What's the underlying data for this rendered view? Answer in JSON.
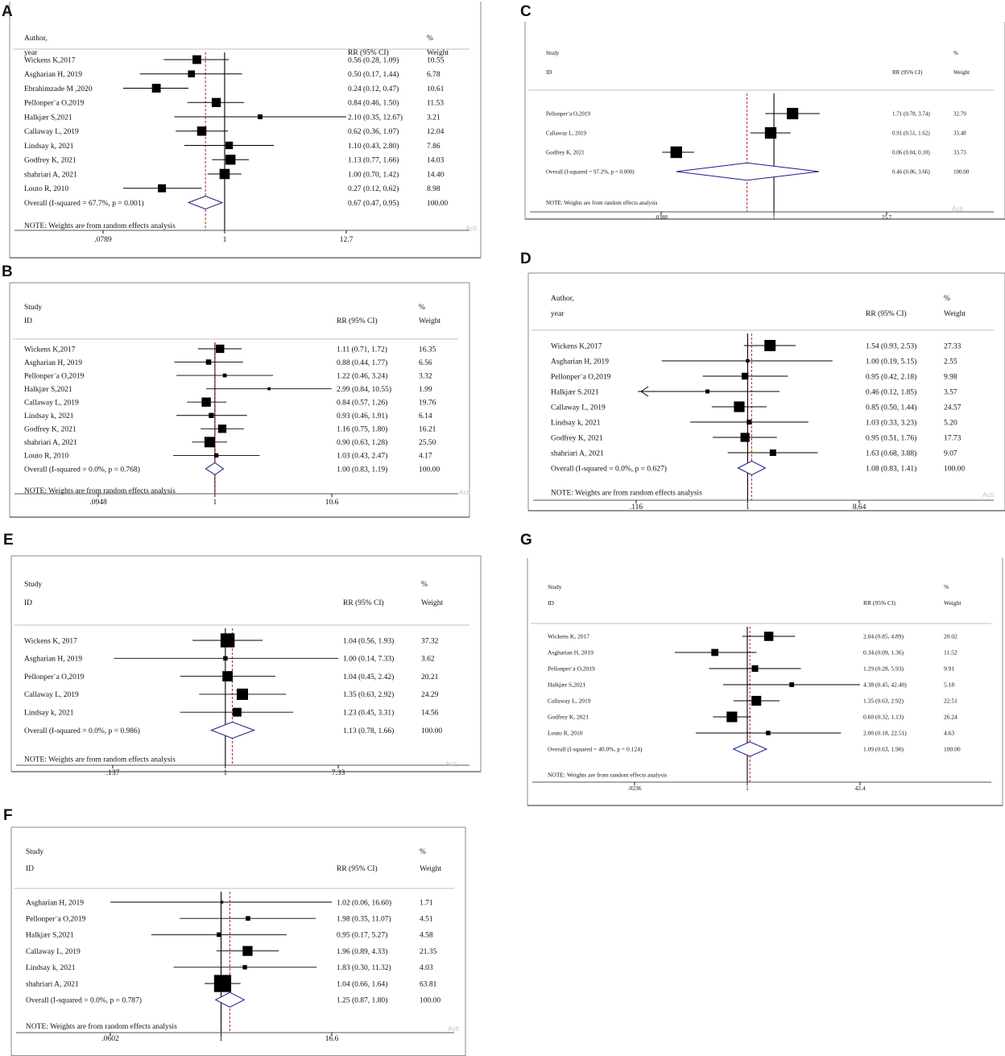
{
  "figure_watermark": "Activate Windows — Go to Settings to activate Windows",
  "chart_data": [
    {
      "panel": "A",
      "type": "forest",
      "axis_scale": "log",
      "header": {
        "col1_line1": "Author,",
        "col1_line2": "year",
        "rr": "RR (95% CI)",
        "w_line1": "%",
        "w_line2": "Weight"
      },
      "axis_min": 0.0789,
      "axis_max": 12.7,
      "null_value": 1,
      "ticks": [
        {
          "v": 0.0789,
          "label": ".0789"
        },
        {
          "v": 1,
          "label": "1"
        },
        {
          "v": 12.7,
          "label": "12.7"
        }
      ],
      "studies": [
        {
          "label": "Wickens K,2017",
          "rr": 0.56,
          "lo": 0.28,
          "hi": 1.09,
          "ci_text": "0.56 (0.28, 1.09)",
          "weight": 10.55,
          "weight_text": "10.55"
        },
        {
          "label": "Asgharian H, 2019",
          "rr": 0.5,
          "lo": 0.17,
          "hi": 1.44,
          "ci_text": "0.50 (0.17, 1.44)",
          "weight": 6.78,
          "weight_text": "6.78"
        },
        {
          "label": "Ebrahimzade M ,2020",
          "rr": 0.24,
          "lo": 0.12,
          "hi": 0.47,
          "ci_text": "0.24 (0.12, 0.47)",
          "weight": 10.61,
          "weight_text": "10.61"
        },
        {
          "label": "Pellonper¨a O,2019",
          "rr": 0.84,
          "lo": 0.46,
          "hi": 1.5,
          "ci_text": "0.84 (0.46, 1.50)",
          "weight": 11.53,
          "weight_text": "11.53"
        },
        {
          "label": "Halkjær S,2021",
          "rr": 2.1,
          "lo": 0.35,
          "hi": 12.67,
          "ci_text": "2.10 (0.35, 12.67)",
          "weight": 3.21,
          "weight_text": "3.21"
        },
        {
          "label": "Callaway L, 2019",
          "rr": 0.62,
          "lo": 0.36,
          "hi": 1.07,
          "ci_text": "0.62 (0.36, 1.07)",
          "weight": 12.04,
          "weight_text": "12.04"
        },
        {
          "label": "Lindsay k, 2021",
          "rr": 1.1,
          "lo": 0.43,
          "hi": 2.8,
          "ci_text": "1.10 (0.43, 2.80)",
          "weight": 7.86,
          "weight_text": "7.86"
        },
        {
          "label": "Godfrey K, 2021",
          "rr": 1.13,
          "lo": 0.77,
          "hi": 1.66,
          "ci_text": "1.13 (0.77, 1.66)",
          "weight": 14.03,
          "weight_text": "14.03"
        },
        {
          "label": "shahriari A, 2021",
          "rr": 1.0,
          "lo": 0.7,
          "hi": 1.42,
          "ci_text": "1.00 (0.70, 1.42)",
          "weight": 14.4,
          "weight_text": "14.40"
        },
        {
          "label": "Louto R, 2010",
          "rr": 0.27,
          "lo": 0.12,
          "hi": 0.62,
          "ci_text": "0.27 (0.12, 0.62)",
          "weight": 8.98,
          "weight_text": "8.98"
        }
      ],
      "overall": {
        "label": "Overall  (I-squared = 67.7%, p = 0.001)",
        "rr": 0.67,
        "lo": 0.47,
        "hi": 0.95,
        "ci_text": "0.67 (0.47, 0.95)",
        "weight_text": "100.00"
      },
      "note": "NOTE: Weights are from random effects analysis"
    },
    {
      "panel": "B",
      "type": "forest",
      "axis_scale": "log",
      "header": {
        "col1_line1": "Study",
        "col1_line2": "ID",
        "rr": "RR (95% CI)",
        "w_line1": "%",
        "w_line2": "Weight"
      },
      "axis_min": 0.0948,
      "axis_max": 10.6,
      "null_value": 1,
      "ticks": [
        {
          "v": 0.0948,
          "label": ".0948"
        },
        {
          "v": 1,
          "label": "1"
        },
        {
          "v": 10.6,
          "label": "10.6"
        }
      ],
      "studies": [
        {
          "label": "Wickens K,2017",
          "rr": 1.11,
          "lo": 0.71,
          "hi": 1.72,
          "ci_text": "1.11 (0.71, 1.72)",
          "weight": 16.35,
          "weight_text": "16.35"
        },
        {
          "label": "Asgharian H, 2019",
          "rr": 0.88,
          "lo": 0.44,
          "hi": 1.77,
          "ci_text": "0.88 (0.44, 1.77)",
          "weight": 6.56,
          "weight_text": "6.56"
        },
        {
          "label": "Pellonper¨a O,2019",
          "rr": 1.22,
          "lo": 0.46,
          "hi": 3.24,
          "ci_text": "1.22 (0.46, 3.24)",
          "weight": 3.32,
          "weight_text": "3.32"
        },
        {
          "label": "Halkjær S,2021",
          "rr": 2.99,
          "lo": 0.84,
          "hi": 10.55,
          "ci_text": "2.99 (0.84, 10.55)",
          "weight": 1.99,
          "weight_text": "1.99"
        },
        {
          "label": "Callaway L, 2019",
          "rr": 0.84,
          "lo": 0.57,
          "hi": 1.26,
          "ci_text": "0.84 (0.57, 1.26)",
          "weight": 19.76,
          "weight_text": "19.76"
        },
        {
          "label": "Lindsay k, 2021",
          "rr": 0.93,
          "lo": 0.46,
          "hi": 1.91,
          "ci_text": "0.93 (0.46, 1.91)",
          "weight": 6.14,
          "weight_text": "6.14"
        },
        {
          "label": "Godfrey K, 2021",
          "rr": 1.16,
          "lo": 0.75,
          "hi": 1.8,
          "ci_text": "1.16 (0.75, 1.80)",
          "weight": 16.21,
          "weight_text": "16.21"
        },
        {
          "label": "shahriari A, 2021",
          "rr": 0.9,
          "lo": 0.63,
          "hi": 1.28,
          "ci_text": "0.90 (0.63, 1.28)",
          "weight": 25.5,
          "weight_text": "25.50"
        },
        {
          "label": "Louto R, 2010",
          "rr": 1.03,
          "lo": 0.43,
          "hi": 2.47,
          "ci_text": "1.03 (0.43, 2.47)",
          "weight": 4.17,
          "weight_text": "4.17"
        }
      ],
      "overall": {
        "label": "Overall  (I-squared = 0.0%, p = 0.768)",
        "rr": 1.0,
        "lo": 0.83,
        "hi": 1.19,
        "ci_text": "1.00 (0.83, 1.19)",
        "weight_text": "100.00"
      },
      "note": "NOTE: Weights are from random effects analysis"
    },
    {
      "panel": "C",
      "type": "forest",
      "axis_scale": "log",
      "header": {
        "col1_line1": "Study",
        "col1_line2": "ID",
        "rr": "RR (95% CI)",
        "w_line1": "%",
        "w_line2": "Weight"
      },
      "axis_min": 0.0388,
      "axis_max": 25.7,
      "null_value": 1,
      "ticks": [
        {
          "v": 0.0388,
          "label": ".0388"
        },
        {
          "v": 1,
          "label": "1"
        },
        {
          "v": 25.7,
          "label": "25.7"
        }
      ],
      "studies": [
        {
          "label": "Pellonper¨a O,2019",
          "rr": 1.71,
          "lo": 0.78,
          "hi": 3.74,
          "ci_text": "1.71 (0.78, 3.74)",
          "weight": 32.79,
          "weight_text": "32.79"
        },
        {
          "label": "Callaway L, 2019",
          "rr": 0.91,
          "lo": 0.51,
          "hi": 1.62,
          "ci_text": "0.91 (0.51, 1.62)",
          "weight": 33.48,
          "weight_text": "33.48"
        },
        {
          "label": "Godfrey K, 2021",
          "rr": 0.06,
          "lo": 0.04,
          "hi": 0.1,
          "ci_text": "0.06 (0.04, 0.10)",
          "weight": 33.73,
          "weight_text": "33.73"
        }
      ],
      "overall": {
        "label": "Overall  (I-squared = 97.2%, p = 0.000)",
        "rr": 0.46,
        "lo": 0.06,
        "hi": 3.66,
        "ci_text": "0.46 (0.06, 3.66)",
        "weight_text": "100.00"
      },
      "note": "NOTE: Weights are from random effects analysis"
    },
    {
      "panel": "D",
      "type": "forest",
      "axis_scale": "log",
      "header": {
        "col1_line1": "Author,",
        "col1_line2": "year",
        "rr": "RR (95% CI)",
        "w_line1": "%",
        "w_line2": "Weight"
      },
      "axis_min": 0.116,
      "axis_max": 8.64,
      "null_value": 1,
      "ticks": [
        {
          "v": 0.116,
          "label": ".116"
        },
        {
          "v": 1,
          "label": "1"
        },
        {
          "v": 8.64,
          "label": "8.64"
        }
      ],
      "studies": [
        {
          "label": "Wickens K,2017",
          "rr": 1.54,
          "lo": 0.93,
          "hi": 2.53,
          "ci_text": "1.54 (0.93, 2.53)",
          "weight": 27.33,
          "weight_text": "27.33"
        },
        {
          "label": "Asgharian H, 2019",
          "rr": 1.0,
          "lo": 0.19,
          "hi": 5.15,
          "ci_text": "1.00 (0.19, 5.15)",
          "weight": 2.55,
          "weight_text": "2.55"
        },
        {
          "label": "Pellonper¨a O,2019",
          "rr": 0.95,
          "lo": 0.42,
          "hi": 2.18,
          "ci_text": "0.95 (0.42, 2.18)",
          "weight": 9.98,
          "weight_text": "9.98"
        },
        {
          "label": "Halkjær S.2021",
          "rr": 0.46,
          "lo": 0.12,
          "hi": 1.85,
          "ci_text": "0.46 (0.12, 1.85)",
          "weight": 3.57,
          "weight_text": "3.57",
          "arrow_left": true
        },
        {
          "label": "Callaway L, 2019",
          "rr": 0.85,
          "lo": 0.5,
          "hi": 1.44,
          "ci_text": "0.85 (0.50, 1.44)",
          "weight": 24.57,
          "weight_text": "24.57"
        },
        {
          "label": "Lindsay k, 2021",
          "rr": 1.03,
          "lo": 0.33,
          "hi": 3.23,
          "ci_text": "1.03 (0.33, 3.23)",
          "weight": 5.2,
          "weight_text": "5.20"
        },
        {
          "label": "Godfrey K, 2021",
          "rr": 0.95,
          "lo": 0.51,
          "hi": 1.76,
          "ci_text": "0.95 (0.51, 1.76)",
          "weight": 17.73,
          "weight_text": "17.73"
        },
        {
          "label": "shahriari A, 2021",
          "rr": 1.63,
          "lo": 0.68,
          "hi": 3.88,
          "ci_text": "1.63 (0.68, 3.88)",
          "weight": 9.07,
          "weight_text": "9.07"
        }
      ],
      "overall": {
        "label": "Overall  (I-squared = 0.0%, p = 0.627)",
        "rr": 1.08,
        "lo": 0.83,
        "hi": 1.41,
        "ci_text": "1.08 (0.83, 1.41)",
        "weight_text": "100.00"
      },
      "note": "NOTE: Weights are from random effects analysis"
    },
    {
      "panel": "E",
      "type": "forest",
      "axis_scale": "log",
      "header": {
        "col1_line1": "Study",
        "col1_line2": "ID",
        "rr": "RR (95% CI)",
        "w_line1": "%",
        "w_line2": "Weight"
      },
      "axis_min": 0.137,
      "axis_max": 7.33,
      "null_value": 1,
      "ticks": [
        {
          "v": 0.137,
          "label": ".137"
        },
        {
          "v": 1,
          "label": "1"
        },
        {
          "v": 7.33,
          "label": "7.33"
        }
      ],
      "studies": [
        {
          "label": "Wickens K, 2017",
          "rr": 1.04,
          "lo": 0.56,
          "hi": 1.93,
          "ci_text": "1.04 (0.56, 1.93)",
          "weight": 37.32,
          "weight_text": "37.32"
        },
        {
          "label": "Asgharian H, 2019",
          "rr": 1.0,
          "lo": 0.14,
          "hi": 7.33,
          "ci_text": "1.00 (0.14, 7.33)",
          "weight": 3.62,
          "weight_text": "3.62"
        },
        {
          "label": "Pellonper¨a O,2019",
          "rr": 1.04,
          "lo": 0.45,
          "hi": 2.42,
          "ci_text": "1.04 (0.45, 2.42)",
          "weight": 20.21,
          "weight_text": "20.21"
        },
        {
          "label": "Callaway L, 2019",
          "rr": 1.35,
          "lo": 0.63,
          "hi": 2.92,
          "ci_text": "1.35 (0.63, 2.92)",
          "weight": 24.29,
          "weight_text": "24.29"
        },
        {
          "label": "Lindsay k, 2021",
          "rr": 1.23,
          "lo": 0.45,
          "hi": 3.31,
          "ci_text": "1.23 (0.45, 3.31)",
          "weight": 14.56,
          "weight_text": "14.56"
        }
      ],
      "overall": {
        "label": "Overall  (I-squared = 0.0%, p = 0.986)",
        "rr": 1.13,
        "lo": 0.78,
        "hi": 1.66,
        "ci_text": "1.13 (0.78, 1.66)",
        "weight_text": "100.00"
      },
      "note": "NOTE: Weights are from random effects analysis"
    },
    {
      "panel": "F",
      "type": "forest",
      "axis_scale": "log",
      "header": {
        "col1_line1": "Study",
        "col1_line2": "ID",
        "rr": "RR (95% CI)",
        "w_line1": "%",
        "w_line2": "Weight"
      },
      "axis_min": 0.0602,
      "axis_max": 16.6,
      "null_value": 1,
      "ticks": [
        {
          "v": 0.0602,
          "label": ".0602"
        },
        {
          "v": 1,
          "label": "1"
        },
        {
          "v": 16.6,
          "label": "16.6"
        }
      ],
      "studies": [
        {
          "label": "Asgharian H, 2019",
          "rr": 1.02,
          "lo": 0.06,
          "hi": 16.6,
          "ci_text": "1.02 (0.06, 16.60)",
          "weight": 1.71,
          "weight_text": "1.71"
        },
        {
          "label": "Pellonper¨a O,2019",
          "rr": 1.98,
          "lo": 0.35,
          "hi": 11.07,
          "ci_text": "1.98 (0.35, 11.07)",
          "weight": 4.51,
          "weight_text": "4.51"
        },
        {
          "label": "Halkjær S,2021",
          "rr": 0.95,
          "lo": 0.17,
          "hi": 5.27,
          "ci_text": "0.95 (0.17, 5.27)",
          "weight": 4.58,
          "weight_text": "4.58"
        },
        {
          "label": "Callaway L, 2019",
          "rr": 1.96,
          "lo": 0.89,
          "hi": 4.33,
          "ci_text": "1.96 (0.89, 4.33)",
          "weight": 21.35,
          "weight_text": "21.35"
        },
        {
          "label": "Lindsay k, 2021",
          "rr": 1.83,
          "lo": 0.3,
          "hi": 11.32,
          "ci_text": "1.83 (0.30, 11.32)",
          "weight": 4.03,
          "weight_text": "4.03"
        },
        {
          "label": "shahriari A, 2021",
          "rr": 1.04,
          "lo": 0.66,
          "hi": 1.64,
          "ci_text": "1.04 (0.66, 1.64)",
          "weight": 63.81,
          "weight_text": "63.81"
        }
      ],
      "overall": {
        "label": "Overall  (I-squared = 0.0%, p = 0.787)",
        "rr": 1.25,
        "lo": 0.87,
        "hi": 1.8,
        "ci_text": "1.25 (0.87, 1.80)",
        "weight_text": "100.00"
      },
      "note": "NOTE: Weights are from random effects analysis"
    },
    {
      "panel": "G",
      "type": "forest",
      "axis_scale": "log",
      "header": {
        "col1_line1": "Study",
        "col1_line2": "ID",
        "rr": "RR (95% CI)",
        "w_line1": "%",
        "w_line2": "Weight"
      },
      "axis_min": 0.0236,
      "axis_max": 42.4,
      "null_value": 1,
      "ticks": [
        {
          "v": 0.0236,
          "label": ".0236"
        },
        {
          "v": 1,
          "label": "1"
        },
        {
          "v": 42.4,
          "label": "42.4"
        }
      ],
      "studies": [
        {
          "label": "Wickens K, 2017",
          "rr": 2.04,
          "lo": 0.85,
          "hi": 4.89,
          "ci_text": "2.04 (0.85, 4.89)",
          "weight": 20.02,
          "weight_text": "20.02"
        },
        {
          "label": "Asgharian H, 2019",
          "rr": 0.34,
          "lo": 0.09,
          "hi": 1.36,
          "ci_text": "0.34 (0.09, 1.36)",
          "weight": 11.52,
          "weight_text": "11.52"
        },
        {
          "label": "Pellonper¨a O,2019",
          "rr": 1.29,
          "lo": 0.28,
          "hi": 5.93,
          "ci_text": "1.29 (0.28, 5.93)",
          "weight": 9.91,
          "weight_text": "9.91"
        },
        {
          "label": "Halkjær S,2021",
          "rr": 4.38,
          "lo": 0.45,
          "hi": 42.4,
          "ci_text": "4.38 (0.45, 42.40)",
          "weight": 5.18,
          "weight_text": "5.18"
        },
        {
          "label": "Callaway L, 2019",
          "rr": 1.35,
          "lo": 0.63,
          "hi": 2.92,
          "ci_text": "1.35 (0.63, 2.92)",
          "weight": 22.51,
          "weight_text": "22.51"
        },
        {
          "label": "Godfrey K, 2021",
          "rr": 0.6,
          "lo": 0.32,
          "hi": 1.13,
          "ci_text": "0.60 (0.32, 1.13)",
          "weight": 26.24,
          "weight_text": "26.24"
        },
        {
          "label": "Louto R, 2010",
          "rr": 2.0,
          "lo": 0.18,
          "hi": 22.51,
          "ci_text": "2.00 (0.18, 22.51)",
          "weight": 4.63,
          "weight_text": "4.63"
        }
      ],
      "overall": {
        "label": "Overall  (I-squared = 40.0%, p = 0.124)",
        "rr": 1.09,
        "lo": 0.63,
        "hi": 1.9,
        "ci_text": "1.09 (0.63, 1.90)",
        "weight_text": "100.00"
      },
      "note": "NOTE: Weights are from random effects analysis"
    }
  ]
}
